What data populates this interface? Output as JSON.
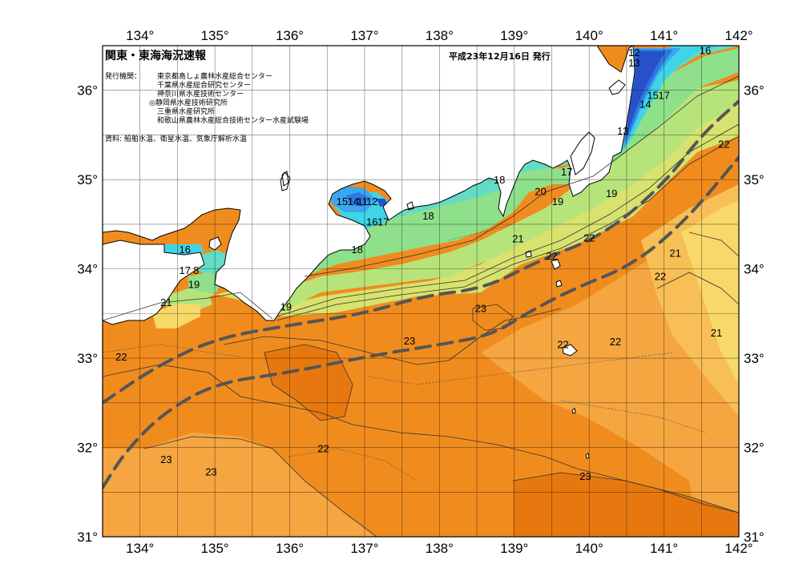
{
  "header": {
    "title": "関東・東海海況速報",
    "date": "平成23年12月16日 発行",
    "issuer_label": "発行機関：",
    "issuers": [
      "東京都島しょ農林水産総合センター",
      "千葉県水産総合研究センター",
      "神奈川県水産技術センター",
      "◎静岡県水産技術研究所",
      "三重県水産研究所",
      "和歌山県農林水産総合技術センター水産試験場"
    ],
    "source": "資料: 船舶水温、衛星水温、気象庁解析水温"
  },
  "axes": {
    "lon_labels": [
      "134°",
      "135°",
      "136°",
      "137°",
      "138°",
      "139°",
      "140°",
      "141°",
      "142°"
    ],
    "lat_labels_left": [
      "36°",
      "35°",
      "34°",
      "33°",
      "32°",
      "31°"
    ],
    "lat_labels_right": [
      "36°",
      "35°",
      "34°",
      "33°",
      "32°",
      "31°"
    ],
    "lon_values": [
      134,
      135,
      136,
      137,
      138,
      139,
      140,
      141,
      142
    ],
    "lat_values": [
      36,
      35,
      34,
      33,
      32,
      31
    ],
    "lon_range": [
      133.5,
      142
    ],
    "lat_range": [
      31,
      36.5
    ]
  },
  "colors": {
    "frame": "#000000",
    "land": "#ffffff",
    "warm_deep": "#e7780f",
    "warm": "#f08c1e",
    "warm_light": "#f5a640",
    "warm_lighter": "#f7bf55",
    "yellow": "#f8d868",
    "yellow_green": "#d8e26e",
    "green_light": "#b6e47a",
    "green": "#8fe08a",
    "aqua": "#62dcc4",
    "cyan": "#3fd4e8",
    "sky": "#3aa8ee",
    "blue": "#2f78e0",
    "blue_deep": "#2850c8",
    "kuroshio": "#555555"
  },
  "labels": {
    "iso": [
      {
        "text": "12",
        "lon": 140.6,
        "lat": 36.43
      },
      {
        "text": "13",
        "lon": 140.6,
        "lat": 36.31
      },
      {
        "text": "16",
        "lon": 141.55,
        "lat": 36.45
      },
      {
        "text": "15",
        "lon": 140.85,
        "lat": 35.95
      },
      {
        "text": "17",
        "lon": 141.0,
        "lat": 35.95
      },
      {
        "text": "14",
        "lon": 140.75,
        "lat": 35.85
      },
      {
        "text": "13",
        "lon": 140.45,
        "lat": 35.55
      },
      {
        "text": "18",
        "lon": 138.8,
        "lat": 35.0
      },
      {
        "text": "17",
        "lon": 139.7,
        "lat": 35.09
      },
      {
        "text": "20",
        "lon": 139.35,
        "lat": 34.87
      },
      {
        "text": "19",
        "lon": 139.58,
        "lat": 34.76
      },
      {
        "text": "19",
        "lon": 140.3,
        "lat": 34.85
      },
      {
        "text": "22",
        "lon": 141.8,
        "lat": 35.4
      },
      {
        "text": "15",
        "lon": 136.7,
        "lat": 34.76
      },
      {
        "text": "14",
        "lon": 136.85,
        "lat": 34.76
      },
      {
        "text": "11",
        "lon": 136.97,
        "lat": 34.76
      },
      {
        "text": "12",
        "lon": 137.1,
        "lat": 34.76
      },
      {
        "text": "16",
        "lon": 137.1,
        "lat": 34.53
      },
      {
        "text": "17",
        "lon": 137.25,
        "lat": 34.53
      },
      {
        "text": "18",
        "lon": 137.85,
        "lat": 34.6
      },
      {
        "text": "18",
        "lon": 136.9,
        "lat": 34.22
      },
      {
        "text": "21",
        "lon": 139.05,
        "lat": 34.34
      },
      {
        "text": "22",
        "lon": 140.0,
        "lat": 34.35
      },
      {
        "text": "22",
        "lon": 139.5,
        "lat": 34.15
      },
      {
        "text": "21",
        "lon": 141.15,
        "lat": 34.18
      },
      {
        "text": "16",
        "lon": 134.6,
        "lat": 34.22
      },
      {
        "text": "17",
        "lon": 134.6,
        "lat": 33.99
      },
      {
        "text": "8",
        "lon": 134.75,
        "lat": 33.99
      },
      {
        "text": "19",
        "lon": 134.72,
        "lat": 33.83
      },
      {
        "text": "21",
        "lon": 134.35,
        "lat": 33.63
      },
      {
        "text": "19",
        "lon": 135.95,
        "lat": 33.58
      },
      {
        "text": "22",
        "lon": 140.95,
        "lat": 33.92
      },
      {
        "text": "23",
        "lon": 138.55,
        "lat": 33.56
      },
      {
        "text": "23",
        "lon": 137.6,
        "lat": 33.2
      },
      {
        "text": "22",
        "lon": 139.65,
        "lat": 33.16
      },
      {
        "text": "22",
        "lon": 140.35,
        "lat": 33.19
      },
      {
        "text": "21",
        "lon": 141.7,
        "lat": 33.29
      },
      {
        "text": "22",
        "lon": 133.75,
        "lat": 33.02
      },
      {
        "text": "22",
        "lon": 136.45,
        "lat": 31.99
      },
      {
        "text": "23",
        "lon": 134.35,
        "lat": 31.87
      },
      {
        "text": "23",
        "lon": 134.95,
        "lat": 31.73
      },
      {
        "text": "23",
        "lon": 139.95,
        "lat": 31.68
      }
    ]
  },
  "kuroshio": {
    "north": [
      [
        133.5,
        32.5
      ],
      [
        134.2,
        32.9
      ],
      [
        135.0,
        33.22
      ],
      [
        136.0,
        33.37
      ],
      [
        137.0,
        33.5
      ],
      [
        137.8,
        33.7
      ],
      [
        138.6,
        33.78
      ],
      [
        139.3,
        34.08
      ],
      [
        140.2,
        34.38
      ],
      [
        141.0,
        34.95
      ],
      [
        141.5,
        35.5
      ],
      [
        142.0,
        35.88
      ]
    ],
    "south": [
      [
        133.5,
        31.55
      ],
      [
        133.8,
        31.95
      ],
      [
        134.3,
        32.38
      ],
      [
        135.0,
        32.72
      ],
      [
        136.0,
        32.84
      ],
      [
        137.1,
        33.03
      ],
      [
        138.0,
        33.15
      ],
      [
        138.7,
        33.26
      ],
      [
        139.2,
        33.52
      ],
      [
        139.8,
        33.78
      ],
      [
        140.6,
        34.05
      ],
      [
        141.3,
        34.55
      ],
      [
        142.0,
        35.25
      ]
    ]
  }
}
